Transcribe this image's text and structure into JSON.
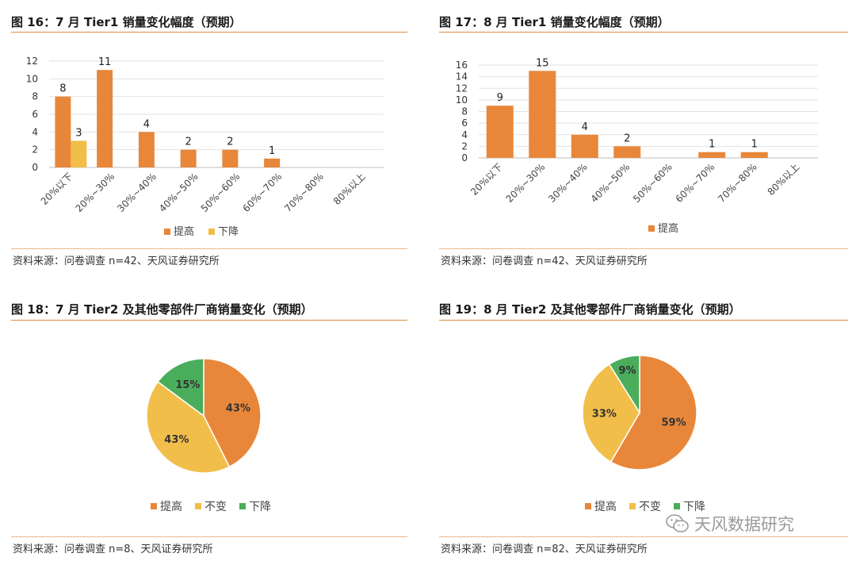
{
  "colors": {
    "up": "#e8873a",
    "down": "#f2be4a",
    "same": "#f2be4a",
    "green": "#4aad5b",
    "rule": "#e08a3c"
  },
  "panels": [
    {
      "title": "图 16：7 月 Tier1 销量变化幅度（预期）",
      "source": "资料来源：问卷调查 n=42、天风证券研究所",
      "chart_data": {
        "type": "bar",
        "categories": [
          "20%以下",
          "20%~30%",
          "30%~40%",
          "40%~50%",
          "50%~60%",
          "60%~70%",
          "70%~80%",
          "80%以上"
        ],
        "series": [
          {
            "name": "提高",
            "values": [
              8,
              11,
              4,
              2,
              2,
              1,
              null,
              null
            ]
          },
          {
            "name": "下降",
            "values": [
              3,
              null,
              null,
              null,
              null,
              null,
              null,
              null
            ]
          }
        ],
        "yticks": [
          "0",
          "2",
          "4",
          "6",
          "8",
          "10",
          "12"
        ],
        "ylim": [
          0,
          12
        ],
        "grid": true,
        "legend": "bottom"
      }
    },
    {
      "title": "图 17：8 月 Tier1 销量变化幅度（预期）",
      "source": "资料来源：问卷调查 n=42、天风证券研究所",
      "chart_data": {
        "type": "bar",
        "categories": [
          "20%以下",
          "20%~30%",
          "30%~40%",
          "40%~50%",
          "50%~60%",
          "60%~70%",
          "70%~80%",
          "80%以上"
        ],
        "series": [
          {
            "name": "提高",
            "values": [
              9,
              15,
              4,
              2,
              null,
              1,
              1,
              null
            ]
          }
        ],
        "yticks": [
          "0",
          "2",
          "4",
          "6",
          "8",
          "10",
          "12",
          "14",
          "16"
        ],
        "ylim": [
          0,
          16
        ],
        "grid": true,
        "legend": "bottom"
      }
    },
    {
      "title": "图 18：7 月 Tier2 及其他零部件厂商销量变化（预期）",
      "source": "资料来源：问卷调查 n=8、天风证券研究所",
      "chart_data": {
        "type": "pie",
        "labels": [
          "提高",
          "不变",
          "下降"
        ],
        "values": [
          43,
          43,
          15
        ],
        "value_labels": [
          "43%",
          "43%",
          "15%"
        ],
        "legend": "bottom"
      }
    },
    {
      "title": "图 19：8 月 Tier2 及其他零部件厂商销量变化（预期）",
      "source": "资料来源：问卷调查 n=82、天风证券研究所",
      "chart_data": {
        "type": "pie",
        "labels": [
          "提高",
          "不变",
          "下降"
        ],
        "values": [
          59,
          33,
          9
        ],
        "value_labels": [
          "59%",
          "33%",
          "9%"
        ],
        "legend": "bottom"
      }
    }
  ],
  "watermark": {
    "text": "天风数据研究",
    "icon": "wechat-icon"
  }
}
